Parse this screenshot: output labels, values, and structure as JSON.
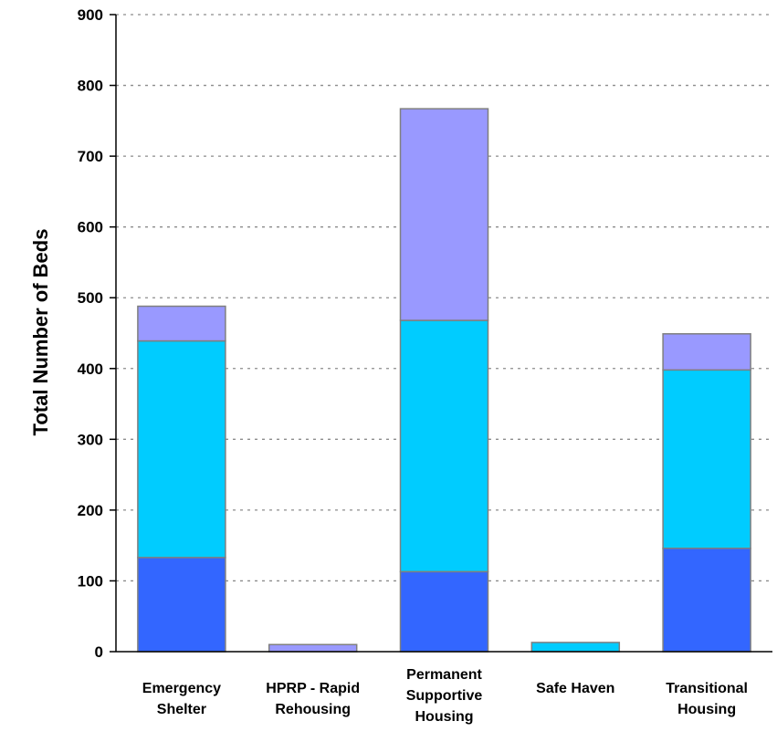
{
  "chart_data": {
    "type": "bar",
    "stacked": true,
    "categories": [
      [
        "Emergency",
        "Shelter"
      ],
      [
        "HPRP - Rapid",
        "Rehousing"
      ],
      [
        "Permanent",
        "Supportive",
        "Housing"
      ],
      [
        "Safe Haven"
      ],
      [
        "Transitional",
        "Housing"
      ]
    ],
    "series": [
      {
        "color": "#3366ff",
        "values": [
          133,
          0,
          113,
          0,
          146
        ]
      },
      {
        "color": "#00ccff",
        "values": [
          306,
          0,
          355,
          13,
          252
        ]
      },
      {
        "color": "#9999ff",
        "values": [
          49,
          10,
          299,
          0,
          51
        ]
      }
    ],
    "ylabel": "Total Number of Beds",
    "xlabel": "",
    "ylim": [
      0,
      900
    ],
    "yticks": [
      0,
      100,
      200,
      300,
      400,
      500,
      600,
      700,
      800,
      900
    ],
    "grid": true,
    "legend": "none"
  }
}
